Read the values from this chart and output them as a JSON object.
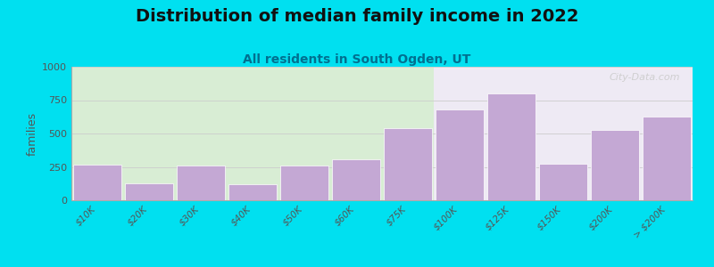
{
  "title": "Distribution of median family income in 2022",
  "subtitle": "All residents in South Ogden, UT",
  "ylabel": "families",
  "categories": [
    "$10K",
    "$20K",
    "$30K",
    "$40K",
    "$50K",
    "$60K",
    "$75K",
    "$100K",
    "$125K",
    "$150K",
    "$200K",
    "> $200K"
  ],
  "values": [
    270,
    130,
    260,
    120,
    260,
    310,
    540,
    680,
    800,
    275,
    530,
    630
  ],
  "bar_color": "#c4a8d4",
  "n_green": 7,
  "ylim": [
    0,
    1000
  ],
  "yticks": [
    0,
    250,
    500,
    750,
    1000
  ],
  "background_outer": "#00e0f0",
  "background_plot_left": "#d8edd4",
  "background_plot_right": "#eeeaf4",
  "watermark": "City-Data.com",
  "title_fontsize": 14,
  "subtitle_fontsize": 10,
  "subtitle_color": "#007090"
}
